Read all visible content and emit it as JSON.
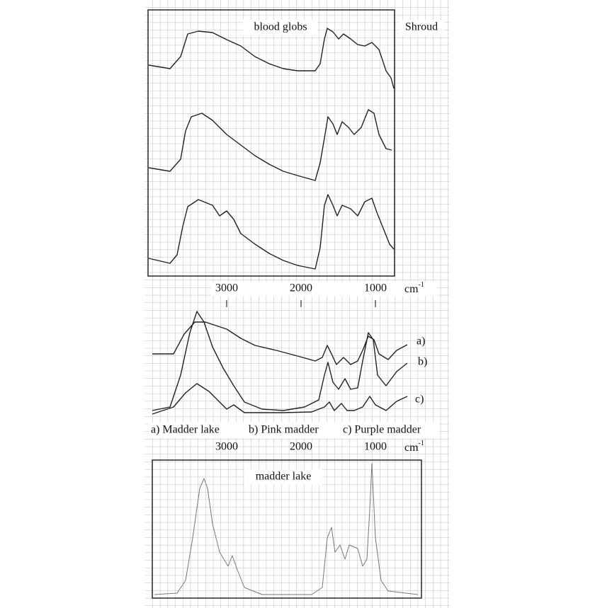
{
  "panel_top": {
    "label": "blood globs",
    "sample": "Shroud"
  },
  "axis_top": {
    "ticks": [
      "3000",
      "2000",
      "1000"
    ],
    "unit": "cm",
    "unit_exp": "-1"
  },
  "panel_middle": {
    "curve_labels": [
      "a)",
      "b)",
      "c)"
    ],
    "legend": [
      "a) Madder lake",
      "b) Pink madder",
      "c) Purple madder"
    ]
  },
  "axis_bottom": {
    "ticks": [
      "3000",
      "2000",
      "1000"
    ],
    "unit": "cm",
    "unit_exp": "-1"
  },
  "panel_bottom": {
    "label": "madder lake"
  }
}
